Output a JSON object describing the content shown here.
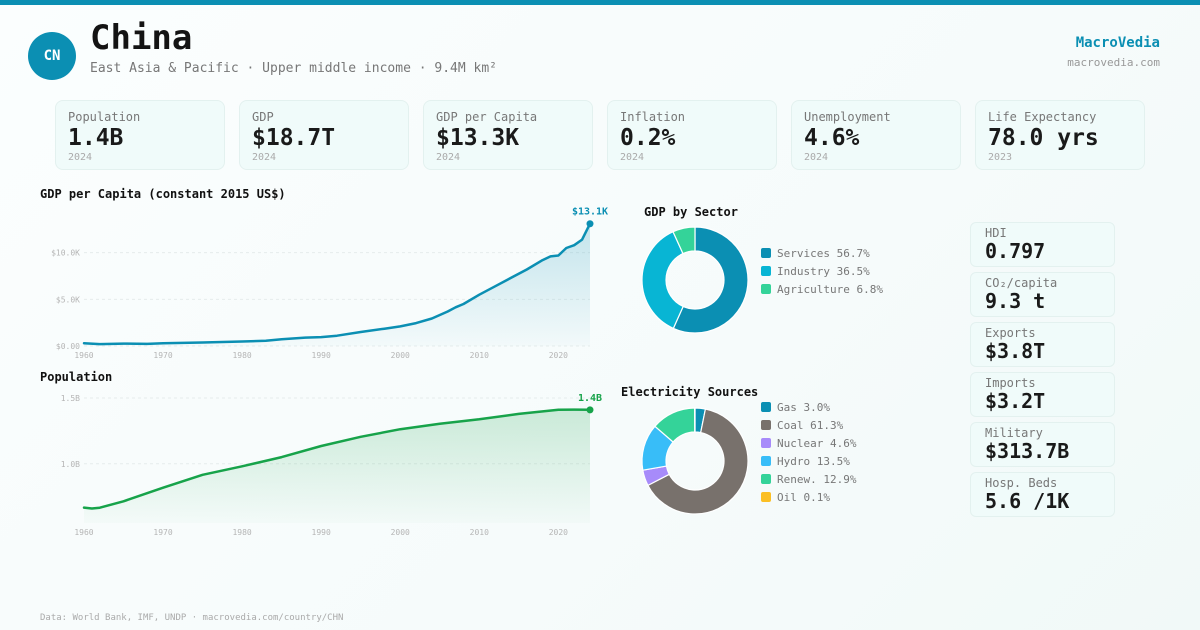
{
  "header": {
    "country_code": "CN",
    "country_name": "China",
    "subtitle": "East Asia & Pacific · Upper middle income · 9.4M km²",
    "brand": "MacroVedia",
    "brand_url": "macrovedia.com",
    "accent_color": "#0b8fb3"
  },
  "kpis": [
    {
      "label": "Population",
      "value": "1.4B",
      "year": "2024"
    },
    {
      "label": "GDP",
      "value": "$18.7T",
      "year": "2024"
    },
    {
      "label": "GDP per Capita",
      "value": "$13.3K",
      "year": "2024"
    },
    {
      "label": "Inflation",
      "value": "0.2%",
      "year": "2024"
    },
    {
      "label": "Unemployment",
      "value": "4.6%",
      "year": "2024"
    },
    {
      "label": "Life Expectancy",
      "value": "78.0 yrs",
      "year": "2023"
    }
  ],
  "side_stats": [
    {
      "label": "HDI",
      "value": "0.797"
    },
    {
      "label": "CO₂/capita",
      "value": "9.3 t"
    },
    {
      "label": "Exports",
      "value": "$3.8T"
    },
    {
      "label": "Imports",
      "value": "$3.2T"
    },
    {
      "label": "Military",
      "value": "$313.7B"
    },
    {
      "label": "Hosp. Beds",
      "value": "5.6 /1K"
    }
  ],
  "footer": "Data: World Bank, IMF, UNDP · macrovedia.com/country/CHN",
  "chart_data": [
    {
      "id": "gdp_per_capita",
      "type": "area",
      "title": "GDP per Capita (constant 2015 US$)",
      "color": "#0b8fb3",
      "end_label": "$13.1K",
      "x_ticks": [
        "1960",
        "1970",
        "1980",
        "1990",
        "2000",
        "2010",
        "2020"
      ],
      "y_ticks": [
        {
          "v": 0,
          "label": "$0.00"
        },
        {
          "v": 5000,
          "label": "$5.0K"
        },
        {
          "v": 10000,
          "label": "$10.0K"
        }
      ],
      "ylim": [
        0,
        13500
      ],
      "xlim": [
        1960,
        2024
      ],
      "grid": true,
      "x": [
        1960,
        1962,
        1965,
        1968,
        1970,
        1975,
        1980,
        1983,
        1985,
        1988,
        1990,
        1992,
        1995,
        1998,
        2000,
        2002,
        2004,
        2006,
        2007,
        2008,
        2010,
        2012,
        2014,
        2016,
        2018,
        2019,
        2020,
        2021,
        2022,
        2023,
        2024
      ],
      "y": [
        300,
        200,
        260,
        230,
        290,
        370,
        480,
        560,
        720,
        900,
        950,
        1100,
        1500,
        1850,
        2100,
        2450,
        2950,
        3700,
        4150,
        4500,
        5500,
        6400,
        7300,
        8200,
        9200,
        9600,
        9700,
        10500,
        10800,
        11400,
        13100
      ]
    },
    {
      "id": "population",
      "type": "area",
      "title": "Population",
      "color": "#17a34a",
      "end_label": "1.4B",
      "x_ticks": [
        "1960",
        "1970",
        "1980",
        "1990",
        "2000",
        "2010",
        "2020"
      ],
      "y_ticks": [
        {
          "v": 1.0,
          "label": "1.0B"
        },
        {
          "v": 1.5,
          "label": "1.5B"
        }
      ],
      "ylim": [
        0.55,
        1.5
      ],
      "xlim": [
        1960,
        2024
      ],
      "grid": true,
      "x": [
        1960,
        1961,
        1962,
        1965,
        1970,
        1975,
        1980,
        1985,
        1990,
        1995,
        2000,
        2005,
        2010,
        2015,
        2020,
        2022,
        2024
      ],
      "y": [
        0.667,
        0.66,
        0.666,
        0.715,
        0.818,
        0.916,
        0.981,
        1.051,
        1.135,
        1.205,
        1.263,
        1.304,
        1.338,
        1.379,
        1.411,
        1.412,
        1.41
      ]
    },
    {
      "id": "gdp_by_sector",
      "type": "pie",
      "title": "GDP by Sector",
      "slices": [
        {
          "name": "Services",
          "value": 56.7,
          "color": "#0b8fb3",
          "label": "Services 56.7%"
        },
        {
          "name": "Industry",
          "value": 36.5,
          "color": "#08b5d4",
          "label": "Industry 36.5%"
        },
        {
          "name": "Agriculture",
          "value": 6.8,
          "color": "#34d399",
          "label": "Agriculture 6.8%"
        }
      ],
      "legend": "right"
    },
    {
      "id": "electricity_sources",
      "type": "pie",
      "title": "Electricity Sources",
      "slices": [
        {
          "name": "Gas",
          "value": 3.0,
          "color": "#0b8fb3",
          "label": "Gas 3.0%"
        },
        {
          "name": "Coal",
          "value": 61.3,
          "color": "#78716c",
          "label": "Coal 61.3%"
        },
        {
          "name": "Nuclear",
          "value": 4.6,
          "color": "#a78bfa",
          "label": "Nuclear 4.6%"
        },
        {
          "name": "Hydro",
          "value": 13.5,
          "color": "#38bdf8",
          "label": "Hydro 13.5%"
        },
        {
          "name": "Renew.",
          "value": 12.9,
          "color": "#34d399",
          "label": "Renew. 12.9%"
        },
        {
          "name": "Oil",
          "value": 0.1,
          "color": "#fbbf24",
          "label": "Oil 0.1%"
        }
      ],
      "legend": "right"
    }
  ]
}
